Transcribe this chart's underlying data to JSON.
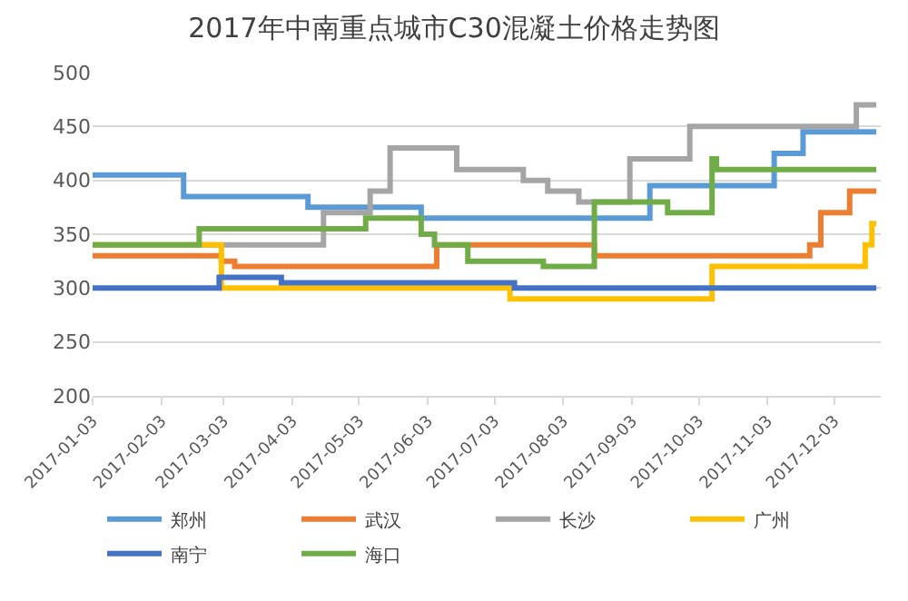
{
  "chart_data": {
    "type": "step",
    "title": "2017年中南重点城市C30混凝土价格走势图",
    "series": [
      {
        "name": "郑州",
        "color": "#5b9bd5",
        "x": [
          "2017-01-03",
          "2017-02-13",
          "2017-04-10",
          "2017-05-31",
          "2017-09-11",
          "2017-11-06",
          "2017-11-19",
          "2017-12-22"
        ],
        "values": [
          405,
          385,
          375,
          365,
          395,
          425,
          445,
          445
        ]
      },
      {
        "name": "武汉",
        "color": "#ed7d31",
        "x": [
          "2017-01-03",
          "2017-03-02",
          "2017-03-08",
          "2017-06-07",
          "2017-08-17",
          "2017-11-22",
          "2017-11-27",
          "2017-12-10",
          "2017-12-22"
        ],
        "values": [
          330,
          325,
          320,
          340,
          330,
          340,
          370,
          390,
          390
        ]
      },
      {
        "name": "长沙",
        "color": "#a5a5a5",
        "x": [
          "2017-01-03",
          "2017-04-17",
          "2017-05-08",
          "2017-05-17",
          "2017-06-16",
          "2017-07-16",
          "2017-07-27",
          "2017-08-10",
          "2017-09-02",
          "2017-09-29",
          "2017-12-13",
          "2017-12-22"
        ],
        "values": [
          340,
          370,
          390,
          430,
          410,
          400,
          390,
          380,
          420,
          450,
          470,
          470
        ]
      },
      {
        "name": "广州",
        "color": "#ffc000",
        "x": [
          "2017-01-03",
          "2017-03-02",
          "2017-07-10",
          "2017-10-09",
          "2017-12-17",
          "2017-12-20",
          "2017-12-22"
        ],
        "values": [
          340,
          300,
          290,
          320,
          340,
          360,
          360
        ]
      },
      {
        "name": "南宁",
        "color": "#4472c4",
        "x": [
          "2017-01-03",
          "2017-03-01",
          "2017-03-29",
          "2017-07-12",
          "2017-12-22"
        ],
        "values": [
          300,
          310,
          305,
          300,
          300
        ]
      },
      {
        "name": "海口",
        "color": "#70ad47",
        "x": [
          "2017-01-03",
          "2017-02-20",
          "2017-05-06",
          "2017-05-31",
          "2017-06-06",
          "2017-06-21",
          "2017-07-25",
          "2017-08-17",
          "2017-09-19",
          "2017-10-09",
          "2017-10-11",
          "2017-12-22"
        ],
        "values": [
          340,
          355,
          365,
          350,
          340,
          325,
          320,
          380,
          370,
          420,
          410,
          410
        ]
      }
    ],
    "xlim": [
      "2017-01-03",
      "2017-12-24"
    ],
    "xticks": [
      "2017-01-03",
      "2017-02-03",
      "2017-03-03",
      "2017-04-03",
      "2017-05-03",
      "2017-06-03",
      "2017-07-03",
      "2017-08-03",
      "2017-09-03",
      "2017-10-03",
      "2017-11-03",
      "2017-12-03"
    ],
    "ylim": [
      200,
      500
    ],
    "yticks": [
      200,
      250,
      300,
      350,
      400,
      450,
      500
    ],
    "grid": "y",
    "legend": "bottom",
    "line_style": "solid",
    "marker": "none"
  }
}
